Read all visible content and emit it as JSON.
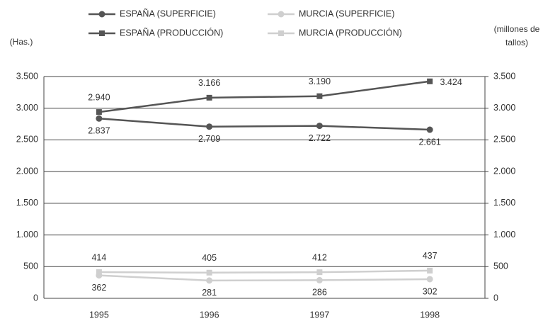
{
  "chart_data": {
    "type": "line",
    "y_label": "(Has.)",
    "y2_label": "(millones de tallos)",
    "categories": [
      "1995",
      "1996",
      "1997",
      "1998"
    ],
    "series": [
      {
        "name": "ESPAÑA (SUPERFICIE)",
        "color": "#555555",
        "marker": "circle",
        "axis": "y",
        "values": [
          2837,
          2709,
          2722,
          2661
        ],
        "value_labels": [
          "2.837",
          "2.709",
          "2.722",
          "2.661"
        ]
      },
      {
        "name": "ESPAÑA (PRODUCCIÓN)",
        "color": "#555555",
        "marker": "square",
        "axis": "y2",
        "values": [
          2940,
          3166,
          3190,
          3424
        ],
        "value_labels": [
          "2.940",
          "3.166",
          "3.190",
          "3.424"
        ]
      },
      {
        "name": "MURCIA (SUPERFICIE)",
        "color": "#cfcfcf",
        "marker": "circle",
        "axis": "y",
        "values": [
          362,
          281,
          286,
          302
        ]
      },
      {
        "name": "MURCIA (PRODUCCIÓN)",
        "color": "#cfcfcf",
        "marker": "square",
        "axis": "y2",
        "values": [
          414,
          405,
          412,
          437
        ]
      }
    ],
    "ylim": [
      0,
      3500
    ],
    "yticks": [
      0,
      500,
      {
        "value": 1000,
        "label": "1.000"
      },
      {
        "value": 1500,
        "label": "1.500"
      },
      {
        "value": 2000,
        "label": "2.000"
      },
      {
        "value": 2500,
        "label": "2.500"
      },
      {
        "value": 3000,
        "label": "3.000"
      },
      {
        "value": 3500,
        "label": "3.500"
      }
    ],
    "y2lim": [
      0,
      3500
    ],
    "y2ticks": [
      0,
      500,
      {
        "value": 1000,
        "label": "1.000"
      },
      {
        "value": 1500,
        "label": "1.500"
      },
      {
        "value": 2000,
        "label": "2.000"
      },
      {
        "value": 2500,
        "label": "2.500"
      },
      {
        "value": 3000,
        "label": "3.000"
      },
      {
        "value": 3500,
        "label": "3.500"
      }
    ],
    "grid": true,
    "legend": "top"
  }
}
